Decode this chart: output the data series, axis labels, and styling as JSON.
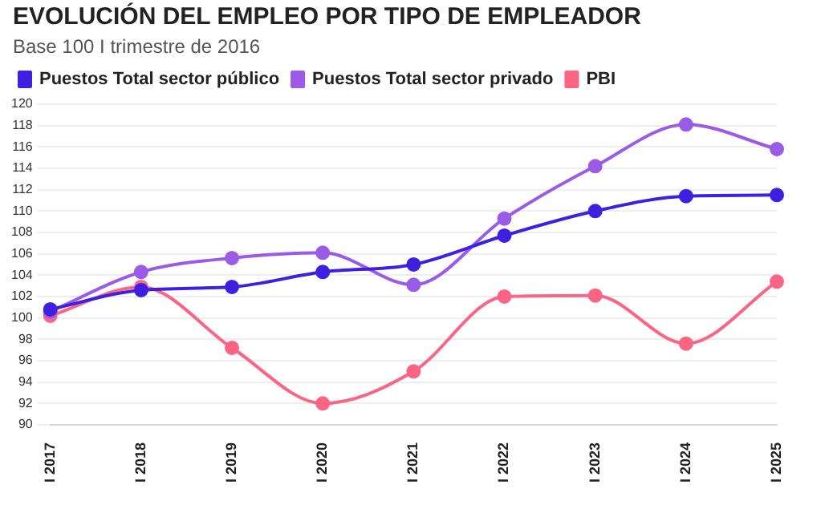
{
  "chart_data": {
    "type": "line",
    "title": "EVOLUCIÓN DEL EMPLEO POR TIPO DE EMPLEADOR",
    "subtitle": "Base 100 I trimestre de 2016",
    "categories": [
      "I 2017",
      "I 2018",
      "I 2019",
      "I 2020",
      "I 2021",
      "I 2022",
      "I 2023",
      "I 2024",
      "I 2025"
    ],
    "series": [
      {
        "name": "Puestos Total sector público",
        "color": "#3f1fe0",
        "values": [
          100.8,
          102.6,
          102.9,
          104.3,
          105.0,
          107.7,
          110.0,
          111.4,
          111.5
        ]
      },
      {
        "name": "Puestos Total sector privado",
        "color": "#9a5be6",
        "values": [
          100.6,
          104.3,
          105.6,
          106.1,
          103.1,
          109.3,
          114.2,
          118.1,
          115.8
        ]
      },
      {
        "name": "PBI",
        "color": "#fb6584",
        "values": [
          100.2,
          102.9,
          97.2,
          92.0,
          95.0,
          102.0,
          102.1,
          97.6,
          103.4
        ]
      }
    ],
    "ylim": [
      90,
      120
    ],
    "yticks": [
      90,
      92,
      94,
      96,
      98,
      100,
      102,
      104,
      106,
      108,
      110,
      112,
      114,
      116,
      118,
      120
    ],
    "grid": "y",
    "legend": "top left",
    "marker": "circle",
    "line_style": "solid"
  }
}
